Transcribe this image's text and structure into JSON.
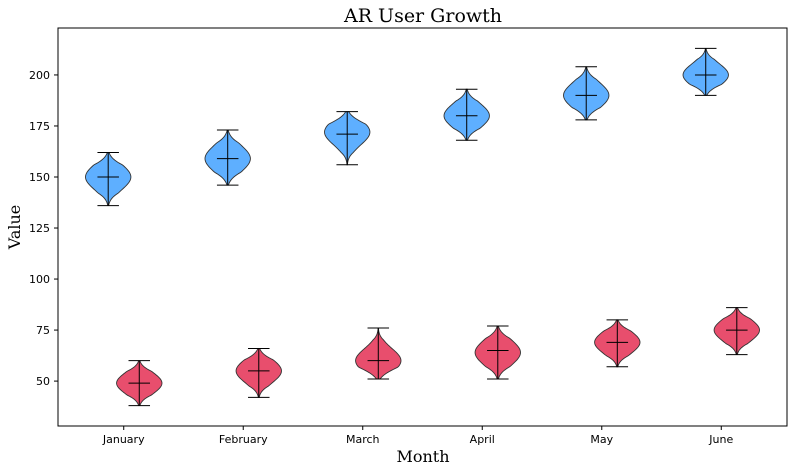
{
  "chart_data": {
    "type": "violin",
    "title": "AR User Growth",
    "xlabel": "Month",
    "ylabel": "Value",
    "categories": [
      "January",
      "February",
      "March",
      "April",
      "May",
      "June"
    ],
    "ylim": [
      28,
      223
    ],
    "yticks": [
      50,
      75,
      100,
      125,
      150,
      175,
      200
    ],
    "grid": false,
    "series": [
      {
        "color": "#4da6ff",
        "offset": -0.13,
        "violins": [
          {
            "min": 136,
            "max": 162,
            "mean": 150,
            "median": 150,
            "peak": 150
          },
          {
            "min": 146,
            "max": 173,
            "mean": 159,
            "median": 159,
            "peak": 159
          },
          {
            "min": 156,
            "max": 182,
            "mean": 171,
            "median": 171,
            "peak": 172
          },
          {
            "min": 168,
            "max": 193,
            "mean": 180,
            "median": 180,
            "peak": 180
          },
          {
            "min": 178,
            "max": 204,
            "mean": 190,
            "median": 190,
            "peak": 190
          },
          {
            "min": 190,
            "max": 213,
            "mean": 200,
            "median": 200,
            "peak": 200
          }
        ]
      },
      {
        "color": "#e63b5d",
        "offset": 0.13,
        "violins": [
          {
            "min": 38,
            "max": 60,
            "mean": 49,
            "median": 49,
            "peak": 49
          },
          {
            "min": 42,
            "max": 66,
            "mean": 55,
            "median": 55,
            "peak": 55
          },
          {
            "min": 51,
            "max": 76,
            "mean": 60,
            "median": 60,
            "peak": 60
          },
          {
            "min": 51,
            "max": 77,
            "mean": 65,
            "median": 65,
            "peak": 64
          },
          {
            "min": 57,
            "max": 80,
            "mean": 69,
            "median": 69,
            "peak": 69
          },
          {
            "min": 63,
            "max": 86,
            "mean": 75,
            "median": 75,
            "peak": 75
          }
        ]
      }
    ]
  }
}
